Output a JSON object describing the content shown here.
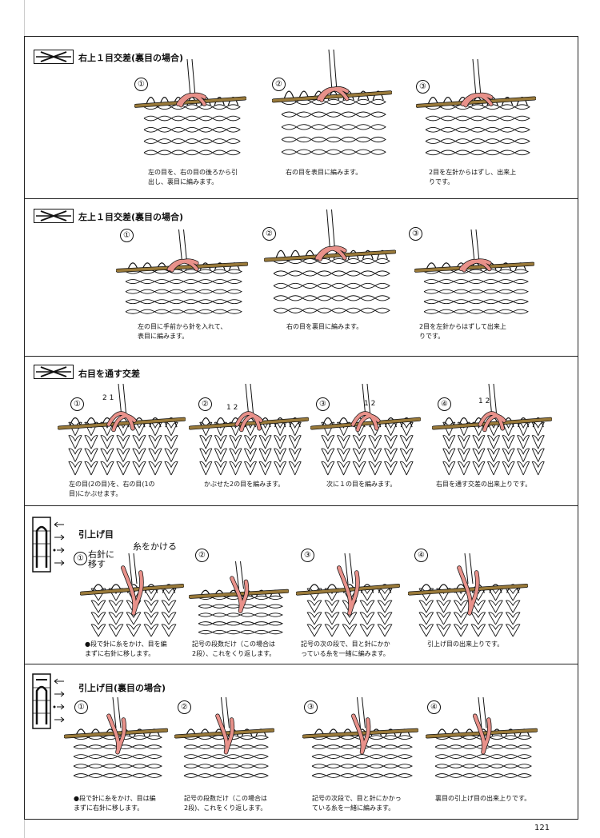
{
  "sections": [
    {
      "title": "右上１目交差(裏目の場合)",
      "steps": [
        {
          "num": "①",
          "caption": "左の目を、右の目の後ろから引\n出し、裏目に編みます。"
        },
        {
          "num": "②",
          "caption": "右の目を表目に編みます。"
        },
        {
          "num": "③",
          "caption": "2目を左針からはずし、出来上\nりです。"
        }
      ]
    },
    {
      "title": "左上１目交差(裏目の場合)",
      "steps": [
        {
          "num": "①",
          "caption": "左の目に手前から針を入れて、\n表目に編みます。"
        },
        {
          "num": "②",
          "caption": "右の目を裏目に編みます。"
        },
        {
          "num": "③",
          "caption": "2目を左針からはずして出来上\nりです。"
        }
      ]
    },
    {
      "title": "右目を通す交差",
      "steps": [
        {
          "num": "①",
          "caption": "左の目(2の目)を、右の目(1の\n目)にかぶせます。",
          "labels": "2  1"
        },
        {
          "num": "②",
          "caption": "かぶせた2の目を編みます。",
          "labels": "1  2"
        },
        {
          "num": "③",
          "caption": "次に１の目を編みます。",
          "labels": "1  2"
        },
        {
          "num": "④",
          "caption": "右目を通す交差の出来上りです。",
          "labels": "1  2"
        }
      ]
    },
    {
      "title": "引上げ目",
      "annotation_yarn": "糸をかける",
      "annotation_move": "右針に\n移す",
      "steps": [
        {
          "num": "①",
          "caption": "●段で針に糸をかけ、目を編\nまずに右針に移します。"
        },
        {
          "num": "②",
          "caption": "記号の段数だけ（この場合は\n2段）、これをくり返します。"
        },
        {
          "num": "③",
          "caption": "記号の次の段で、目と針にかか\nっている糸を一緒に編みます。"
        },
        {
          "num": "④",
          "caption": "引上げ目の出来上りです。"
        }
      ]
    },
    {
      "title": "引上げ目(裏目の場合)",
      "steps": [
        {
          "num": "①",
          "caption": "●段で針に糸をかけ、目は編\nまずに右針に移します。"
        },
        {
          "num": "②",
          "caption": "記号の段数だけ（この場合は\n2段)、これをくり返します。"
        },
        {
          "num": "③",
          "caption": "記号の次段で、目と針にかかっ\nている糸を一緒に編みます。"
        },
        {
          "num": "④",
          "caption": "裏目の引上げ目の出来上りです。"
        }
      ]
    }
  ],
  "page_number": "121",
  "colors": {
    "yarn": "#e8918a",
    "needle": "#9a7a3a",
    "stitch": "#ffffff",
    "ink": "#111111"
  }
}
